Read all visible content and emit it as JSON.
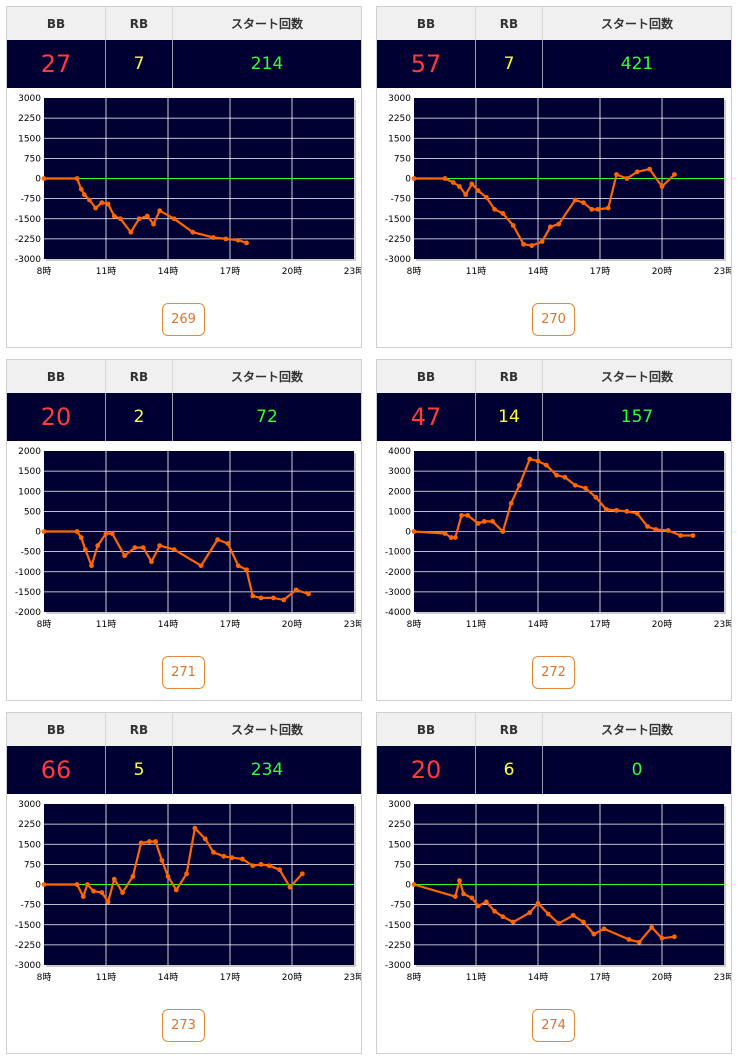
{
  "colors": {
    "plot_bg": "#000033",
    "line": "#ff6600",
    "zero_line": "#33ff33",
    "bb_text": "#ff3b3b",
    "rb_text": "#ffff33",
    "start_text": "#33ff33",
    "button_border": "#e58a3a"
  },
  "headers": {
    "bb": "BB",
    "rb": "RB",
    "start": "スタート回数"
  },
  "cards": [
    {
      "bb": "27",
      "rb": "7",
      "start": "214",
      "button": "269"
    },
    {
      "bb": "57",
      "rb": "7",
      "start": "421",
      "button": "270"
    },
    {
      "bb": "20",
      "rb": "2",
      "start": "72",
      "button": "271"
    },
    {
      "bb": "47",
      "rb": "14",
      "start": "157",
      "button": "272"
    },
    {
      "bb": "66",
      "rb": "5",
      "start": "234",
      "button": "273"
    },
    {
      "bb": "20",
      "rb": "6",
      "start": "0",
      "button": "274"
    }
  ],
  "chart_data": [
    {
      "type": "line",
      "x_ticks": [
        "8時",
        "11時",
        "14時",
        "17時",
        "20時",
        "23時"
      ],
      "xlim": [
        8,
        23
      ],
      "ylim": [
        -3000,
        3000
      ],
      "y_ticks": [
        "3000",
        "2250",
        "1500",
        "750",
        "0",
        "-750",
        "-1500",
        "-2250",
        "-3000"
      ],
      "grid": true,
      "series": [
        {
          "x": [
            8,
            9.6,
            9.8,
            9.95,
            10.2,
            10.5,
            10.8,
            11.1,
            11.4,
            11.7,
            12.2,
            12.6,
            13.0,
            13.3,
            13.6,
            14.3,
            15.2,
            16.2,
            16.8,
            17.4,
            17.8
          ],
          "y": [
            0,
            0,
            -400,
            -600,
            -800,
            -1100,
            -900,
            -950,
            -1400,
            -1500,
            -2000,
            -1500,
            -1400,
            -1700,
            -1200,
            -1500,
            -2000,
            -2200,
            -2250,
            -2300,
            -2400
          ]
        }
      ]
    },
    {
      "type": "line",
      "x_ticks": [
        "8時",
        "11時",
        "14時",
        "17時",
        "20時",
        "23時"
      ],
      "xlim": [
        8,
        23
      ],
      "ylim": [
        -3000,
        3000
      ],
      "y_ticks": [
        "3000",
        "2250",
        "1500",
        "750",
        "0",
        "-750",
        "-1500",
        "-2250",
        "-3000"
      ],
      "grid": true,
      "series": [
        {
          "x": [
            8,
            9.5,
            9.9,
            10.2,
            10.5,
            10.8,
            11.1,
            11.5,
            11.9,
            12.3,
            12.8,
            13.3,
            13.7,
            14.2,
            14.6,
            15.0,
            15.8,
            16.2,
            16.6,
            16.9,
            17.4,
            17.8,
            18.3,
            18.8,
            19.4,
            20.0,
            20.6
          ],
          "y": [
            0,
            0,
            -150,
            -300,
            -600,
            -200,
            -450,
            -700,
            -1150,
            -1300,
            -1750,
            -2450,
            -2500,
            -2350,
            -1800,
            -1700,
            -800,
            -900,
            -1150,
            -1150,
            -1100,
            150,
            0,
            250,
            350,
            -300,
            150
          ]
        }
      ]
    },
    {
      "type": "line",
      "x_ticks": [
        "8時",
        "11時",
        "14時",
        "17時",
        "20時",
        "23時"
      ],
      "xlim": [
        8,
        23
      ],
      "ylim": [
        -2000,
        2000
      ],
      "y_ticks": [
        "2000",
        "1500",
        "1000",
        "500",
        "0",
        "-500",
        "-1000",
        "-1500",
        "-2000"
      ],
      "grid": true,
      "series": [
        {
          "x": [
            8,
            9.6,
            9.8,
            10.0,
            10.3,
            10.6,
            11.0,
            11.3,
            11.9,
            12.4,
            12.8,
            13.2,
            13.6,
            14.3,
            15.6,
            16.4,
            16.9,
            17.4,
            17.8,
            18.1,
            18.5,
            19.1,
            19.6,
            20.2,
            20.8
          ],
          "y": [
            0,
            0,
            -150,
            -450,
            -850,
            -350,
            -50,
            -50,
            -600,
            -400,
            -400,
            -750,
            -350,
            -450,
            -850,
            -200,
            -300,
            -850,
            -950,
            -1600,
            -1650,
            -1650,
            -1700,
            -1450,
            -1550
          ]
        }
      ]
    },
    {
      "type": "line",
      "x_ticks": [
        "8時",
        "11時",
        "14時",
        "17時",
        "20時",
        "23時"
      ],
      "xlim": [
        8,
        23
      ],
      "ylim": [
        -4000,
        4000
      ],
      "y_ticks": [
        "4000",
        "3000",
        "2000",
        "1000",
        "0",
        "-1000",
        "-2000",
        "-3000",
        "-4000"
      ],
      "grid": true,
      "series": [
        {
          "x": [
            8,
            9.5,
            9.8,
            10.0,
            10.3,
            10.6,
            11.1,
            11.4,
            11.8,
            12.3,
            12.7,
            13.1,
            13.6,
            14.0,
            14.4,
            14.9,
            15.3,
            15.8,
            16.3,
            16.8,
            17.3,
            17.8,
            18.3,
            18.8,
            19.3,
            19.7,
            20.3,
            20.9,
            21.5
          ],
          "y": [
            0,
            -100,
            -300,
            -300,
            800,
            800,
            400,
            500,
            500,
            0,
            1400,
            2300,
            3600,
            3500,
            3300,
            2800,
            2700,
            2300,
            2150,
            1700,
            1100,
            1050,
            1000,
            900,
            250,
            100,
            50,
            -200,
            -200
          ]
        }
      ]
    },
    {
      "type": "line",
      "x_ticks": [
        "8時",
        "11時",
        "14時",
        "17時",
        "20時",
        "23時"
      ],
      "xlim": [
        8,
        23
      ],
      "ylim": [
        -3000,
        3000
      ],
      "y_ticks": [
        "3000",
        "2250",
        "1500",
        "750",
        "0",
        "-750",
        "-1500",
        "-2250",
        "-3000"
      ],
      "grid": true,
      "series": [
        {
          "x": [
            8,
            9.6,
            9.9,
            10.1,
            10.4,
            10.8,
            11.1,
            11.4,
            11.8,
            12.3,
            12.7,
            13.1,
            13.4,
            13.7,
            14.0,
            14.4,
            14.9,
            15.3,
            15.8,
            16.2,
            16.7,
            17.1,
            17.6,
            18.1,
            18.5,
            18.9,
            19.4,
            19.9,
            20.5
          ],
          "y": [
            0,
            0,
            -450,
            0,
            -250,
            -300,
            -650,
            200,
            -300,
            300,
            1550,
            1600,
            1600,
            900,
            300,
            -200,
            400,
            2100,
            1700,
            1200,
            1050,
            1000,
            950,
            700,
            750,
            700,
            550,
            -100,
            400
          ]
        }
      ]
    },
    {
      "type": "line",
      "x_ticks": [
        "8時",
        "11時",
        "14時",
        "17時",
        "20時",
        "23時"
      ],
      "xlim": [
        8,
        23
      ],
      "ylim": [
        -3000,
        3000
      ],
      "y_ticks": [
        "3000",
        "2250",
        "1500",
        "750",
        "0",
        "-750",
        "-1500",
        "-2250",
        "-3000"
      ],
      "grid": true,
      "series": [
        {
          "x": [
            8,
            10.0,
            10.2,
            10.4,
            10.8,
            11.1,
            11.5,
            11.9,
            12.3,
            12.8,
            13.6,
            14.0,
            14.5,
            15.0,
            15.7,
            16.2,
            16.7,
            17.2,
            18.4,
            18.9,
            19.5,
            20.0,
            20.6
          ],
          "y": [
            0,
            -450,
            150,
            -350,
            -500,
            -800,
            -650,
            -1000,
            -1200,
            -1400,
            -1050,
            -700,
            -1100,
            -1450,
            -1150,
            -1400,
            -1850,
            -1650,
            -2050,
            -2150,
            -1600,
            -2000,
            -1950
          ]
        }
      ]
    }
  ]
}
